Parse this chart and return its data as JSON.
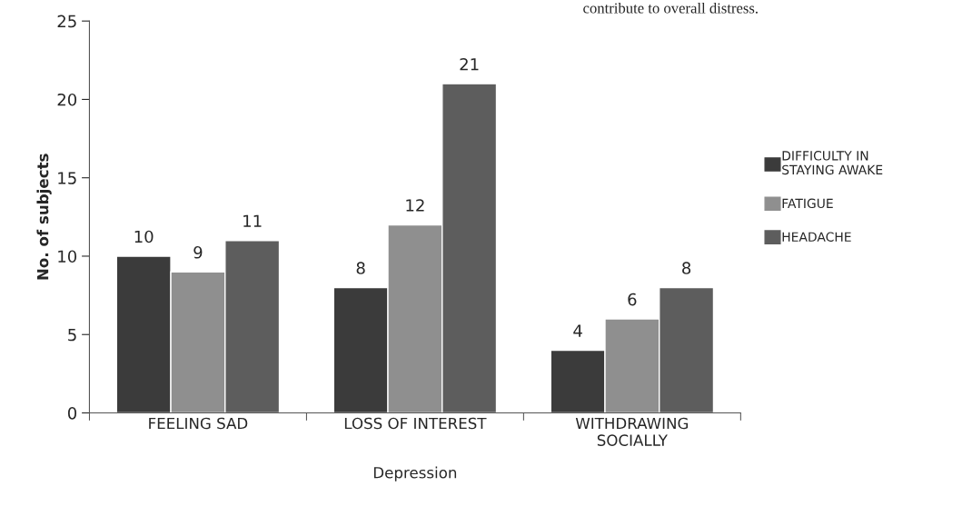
{
  "chart_data": {
    "type": "bar",
    "xlabel": "Depression",
    "ylabel": "No. of subjects",
    "annotations": [
      "contribute to overall distress."
    ],
    "categories": [
      "FEELING SAD",
      "LOSS OF INTEREST",
      "WITHDRAWING\nSOCIALLY"
    ],
    "series": [
      {
        "name": "DIFFICULTY IN\nSTAYING AWAKE",
        "color": "#3b3b3b",
        "values": [
          10,
          8,
          4
        ]
      },
      {
        "name": "FATIGUE",
        "color": "#8f8f8f",
        "values": [
          9,
          12,
          6
        ]
      },
      {
        "name": "HEADACHE",
        "color": "#5d5d5d",
        "values": [
          11,
          21,
          8
        ]
      }
    ],
    "ylim": [
      0,
      25
    ],
    "yticks": [
      0,
      5,
      10,
      15,
      20,
      25
    ],
    "data_labels": true,
    "legend": "right",
    "grid": false
  }
}
